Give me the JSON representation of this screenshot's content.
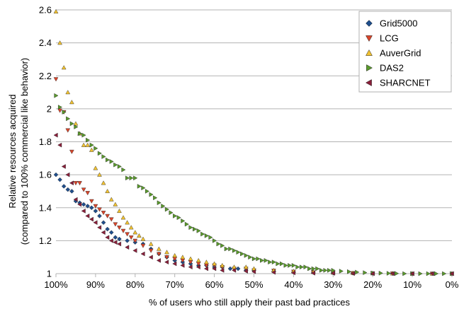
{
  "chart_data": {
    "type": "scatter",
    "title": "",
    "xlabel": "% of users who still apply their past bad practices",
    "ylabel_lines": [
      "Relative resources acquired",
      "(compared to 100% commercial like behavior)"
    ],
    "x_reversed": true,
    "xlim": [
      0,
      100
    ],
    "ylim": [
      1,
      2.6
    ],
    "x_ticks": [
      100,
      90,
      80,
      70,
      60,
      50,
      40,
      30,
      20,
      10,
      0
    ],
    "x_tick_labels": [
      "100%",
      "90%",
      "80%",
      "70%",
      "60%",
      "50%",
      "40%",
      "30%",
      "20%",
      "10%",
      "0%"
    ],
    "y_ticks": [
      1,
      1.2,
      1.4,
      1.6,
      1.8,
      2,
      2.2,
      2.4,
      2.6
    ],
    "y_tick_labels": [
      "1",
      "1.2",
      "1.4",
      "1.6",
      "1.8",
      "2",
      "2.2",
      "2.4",
      "2.6"
    ],
    "grid": "horizontal",
    "legend_position": "top-right",
    "series": [
      {
        "name": "Grid5000",
        "marker": "diamond",
        "color": "#1f4e8c",
        "x": [
          100,
          99,
          98,
          97,
          96,
          95,
          94,
          93,
          92,
          91,
          90,
          89,
          88,
          87,
          86,
          85,
          84,
          82,
          80,
          78,
          76,
          74,
          72,
          70,
          68,
          66,
          64,
          62,
          60,
          58,
          56,
          54,
          52,
          50,
          45,
          40,
          35,
          30,
          25,
          20,
          15,
          10,
          5,
          0
        ],
        "y": [
          1.6,
          1.57,
          1.53,
          1.51,
          1.5,
          1.44,
          1.43,
          1.42,
          1.41,
          1.4,
          1.38,
          1.35,
          1.31,
          1.27,
          1.25,
          1.22,
          1.21,
          1.2,
          1.19,
          1.18,
          1.15,
          1.12,
          1.1,
          1.08,
          1.07,
          1.06,
          1.05,
          1.05,
          1.04,
          1.04,
          1.03,
          1.03,
          1.02,
          1.02,
          1.015,
          1.01,
          1.008,
          1.005,
          1.003,
          1.002,
          1.001,
          1.0,
          1.0,
          1.0
        ]
      },
      {
        "name": "LCG",
        "marker": "triangle-down",
        "color": "#d9452a",
        "x": [
          100,
          99,
          98,
          97,
          96,
          95,
          94,
          93,
          92,
          91,
          90,
          89,
          88,
          87,
          86,
          85,
          84,
          83,
          82,
          81,
          80,
          78,
          76,
          74,
          72,
          70,
          68,
          66,
          64,
          62,
          60,
          58,
          55,
          52,
          50,
          45,
          40,
          35,
          30,
          25,
          20,
          15,
          10,
          5,
          0
        ],
        "y": [
          2.18,
          1.99,
          1.98,
          1.87,
          1.74,
          1.55,
          1.55,
          1.51,
          1.49,
          1.44,
          1.41,
          1.39,
          1.37,
          1.35,
          1.33,
          1.3,
          1.28,
          1.26,
          1.24,
          1.22,
          1.2,
          1.17,
          1.14,
          1.12,
          1.1,
          1.09,
          1.08,
          1.07,
          1.06,
          1.05,
          1.05,
          1.04,
          1.03,
          1.03,
          1.02,
          1.018,
          1.012,
          1.008,
          1.005,
          1.003,
          1.002,
          1.001,
          1.0,
          1.0,
          1.0
        ]
      },
      {
        "name": "AuverGrid",
        "marker": "triangle-up",
        "color": "#f2c230",
        "x": [
          100,
          99,
          98,
          97,
          96,
          95,
          94,
          93,
          92,
          91,
          90,
          89,
          88,
          87,
          86,
          85,
          84,
          83,
          82,
          81,
          80,
          79,
          78,
          76,
          74,
          72,
          70,
          68,
          66,
          64,
          62,
          60,
          58,
          55,
          52,
          50,
          45,
          40,
          35,
          30,
          25,
          20,
          15,
          10,
          5,
          0
        ],
        "y": [
          2.59,
          2.4,
          2.25,
          2.1,
          2.04,
          1.91,
          1.85,
          1.78,
          1.78,
          1.75,
          1.64,
          1.6,
          1.55,
          1.5,
          1.45,
          1.42,
          1.38,
          1.34,
          1.31,
          1.28,
          1.25,
          1.23,
          1.21,
          1.18,
          1.15,
          1.13,
          1.11,
          1.1,
          1.09,
          1.08,
          1.07,
          1.06,
          1.05,
          1.04,
          1.04,
          1.03,
          1.02,
          1.015,
          1.01,
          1.006,
          1.004,
          1.002,
          1.001,
          1.0,
          1.0,
          1.0
        ]
      },
      {
        "name": "DAS2",
        "marker": "triangle-right",
        "color": "#5a9a2c",
        "x": [
          100,
          99,
          98,
          97,
          96,
          95,
          94,
          93,
          92,
          91,
          90,
          89,
          88,
          87,
          86,
          85,
          84,
          83,
          82,
          81,
          80,
          79,
          78,
          77,
          76,
          75,
          74,
          73,
          72,
          71,
          70,
          69,
          68,
          67,
          66,
          65,
          64,
          63,
          62,
          61,
          60,
          59,
          58,
          57,
          56,
          55,
          54,
          53,
          52,
          51,
          50,
          49,
          48,
          47,
          46,
          45,
          44,
          43,
          42,
          41,
          40,
          39,
          38,
          37,
          36,
          35,
          34,
          33,
          32,
          31,
          30,
          28,
          26,
          24,
          22,
          20,
          18,
          16,
          14,
          12,
          10,
          8,
          6,
          4,
          2,
          0
        ],
        "y": [
          2.08,
          2.01,
          1.98,
          1.94,
          1.91,
          1.89,
          1.85,
          1.84,
          1.81,
          1.78,
          1.76,
          1.73,
          1.71,
          1.69,
          1.68,
          1.66,
          1.65,
          1.63,
          1.58,
          1.58,
          1.58,
          1.53,
          1.52,
          1.5,
          1.48,
          1.46,
          1.43,
          1.41,
          1.39,
          1.37,
          1.35,
          1.34,
          1.32,
          1.3,
          1.28,
          1.27,
          1.26,
          1.24,
          1.23,
          1.22,
          1.2,
          1.18,
          1.17,
          1.15,
          1.15,
          1.14,
          1.13,
          1.12,
          1.11,
          1.1,
          1.09,
          1.09,
          1.08,
          1.08,
          1.07,
          1.07,
          1.06,
          1.06,
          1.05,
          1.05,
          1.05,
          1.04,
          1.04,
          1.04,
          1.03,
          1.03,
          1.03,
          1.02,
          1.02,
          1.02,
          1.02,
          1.015,
          1.012,
          1.009,
          1.006,
          1.004,
          1.003,
          1.002,
          1.001,
          1.0,
          1.0,
          1.0,
          1.0,
          1.0,
          1.0,
          1.0
        ]
      },
      {
        "name": "SHARCNET",
        "marker": "triangle-left",
        "color": "#8a1f3a",
        "x": [
          100,
          99,
          98,
          97,
          96,
          95,
          94,
          93,
          92,
          91,
          90,
          89,
          88,
          87,
          86,
          85,
          84,
          82,
          80,
          78,
          76,
          74,
          72,
          70,
          68,
          66,
          64,
          62,
          60,
          58,
          55,
          52,
          50,
          45,
          40,
          35,
          30,
          25,
          20,
          15,
          10,
          5,
          0
        ],
        "y": [
          1.84,
          1.78,
          1.65,
          1.6,
          1.55,
          1.45,
          1.42,
          1.38,
          1.35,
          1.33,
          1.31,
          1.28,
          1.25,
          1.22,
          1.2,
          1.19,
          1.18,
          1.16,
          1.14,
          1.12,
          1.1,
          1.08,
          1.07,
          1.06,
          1.05,
          1.04,
          1.04,
          1.03,
          1.03,
          1.02,
          1.02,
          1.015,
          1.012,
          1.008,
          1.005,
          1.003,
          1.002,
          1.001,
          1.0,
          1.0,
          1.0,
          1.0,
          1.0
        ]
      }
    ]
  }
}
